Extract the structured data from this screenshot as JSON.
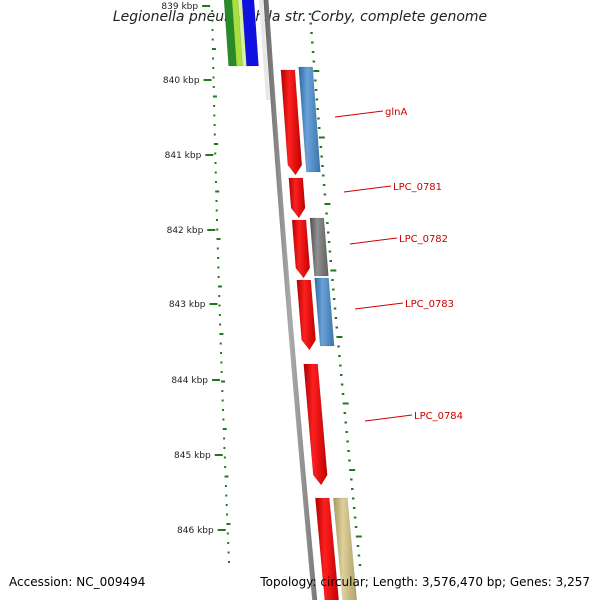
{
  "title": "Legionella pneumophila str. Corby, complete genome",
  "footer": {
    "accession": "Accession: NC_009494",
    "stats": "Topology: circular; Length: 3,576,470 bp; Genes: 3,257"
  },
  "ruler": {
    "labels": [
      "839 kbp",
      "840 kbp",
      "841 kbp",
      "842 kbp",
      "843 kbp",
      "844 kbp",
      "845 kbp",
      "846 kbp"
    ]
  },
  "genes": [
    {
      "label": "glnA",
      "strand": "reverse",
      "color": "#ff0000"
    },
    {
      "label": "LPC_0781",
      "strand": "reverse",
      "color": "#ff0000"
    },
    {
      "label": "LPC_0782",
      "strand": "reverse",
      "color": "#ff0000"
    },
    {
      "label": "LPC_0783",
      "strand": "reverse",
      "color": "#ff0000"
    },
    {
      "label": "LPC_0784",
      "strand": "reverse",
      "color": "#ff0000"
    }
  ],
  "colors": {
    "gene": "#ff0000",
    "label": "#cc0000",
    "backbone": "#888888",
    "gc_ticks": "#1f7a1f",
    "cog_blue": "#4a86c0",
    "cog_gray": "#707070",
    "cog_tan": "#c8b878",
    "cog_green": "#2a8a2a",
    "cog_lime": "#a8e040",
    "cog_royal": "#1010e0"
  }
}
